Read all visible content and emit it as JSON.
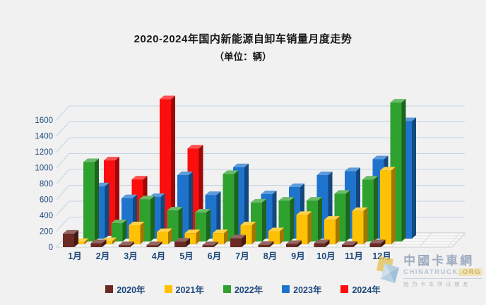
{
  "title": {
    "line1": "2020-2024年国内新能源自卸车销量月度走势",
    "line2": "（单位：辆）"
  },
  "chart_data": {
    "type": "bar",
    "style": "3d-clustered-column",
    "title": "2020-2024年国内新能源自卸车销量月度走势",
    "subtitle": "（单位：辆）",
    "unit": "辆",
    "categories": [
      "1月",
      "2月",
      "3月",
      "4月",
      "5月",
      "6月",
      "7月",
      "8月",
      "9月",
      "10月",
      "11月",
      "12月"
    ],
    "series": [
      {
        "name": "2020年",
        "color": "#6b2a24",
        "values": [
          170,
          50,
          25,
          25,
          70,
          25,
          110,
          30,
          40,
          50,
          30,
          50
        ]
      },
      {
        "name": "2021年",
        "color": "#ffc103",
        "values": [
          30,
          40,
          240,
          155,
          140,
          140,
          240,
          165,
          370,
          310,
          420,
          930
        ]
      },
      {
        "name": "2022年",
        "color": "#2ea12e",
        "values": [
          1000,
          230,
          530,
          390,
          365,
          850,
          490,
          515,
          515,
          600,
          780,
          1750
        ]
      },
      {
        "name": "2023年",
        "color": "#1e74cc",
        "values": [
          660,
          510,
          525,
          800,
          550,
          900,
          560,
          650,
          800,
          850,
          1000,
          1480
        ]
      },
      {
        "name": "2024年",
        "color": "#fd0d0d",
        "values": [
          950,
          710,
          1720,
          1100,
          null,
          null,
          null,
          null,
          null,
          null,
          null,
          null
        ]
      }
    ],
    "y_ticks": [
      0,
      200,
      400,
      600,
      800,
      1000,
      1200,
      1400,
      1600
    ],
    "ylim": [
      0,
      1800
    ],
    "xlabel": "",
    "ylabel": "",
    "grid": true,
    "legend_position": "bottom",
    "axis_text_color": "#1f497d",
    "gridline_color": "#c5d3e8"
  },
  "watermark": {
    "name_zh": "中國卡車網",
    "domain": "CHINATRUCK",
    "domain_suffix": ".ORG",
    "slogan": "因为卡车所以朋友"
  }
}
